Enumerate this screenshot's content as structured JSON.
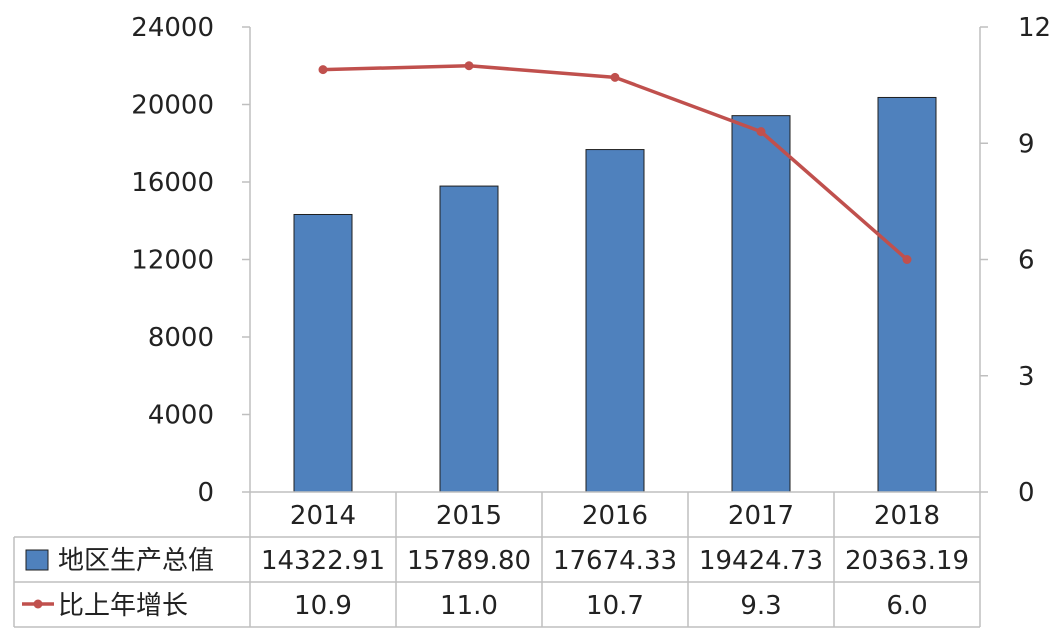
{
  "chart_data": {
    "type": "bar+line",
    "categories": [
      "2014",
      "2015",
      "2016",
      "2017",
      "2018"
    ],
    "series": [
      {
        "name": "地区生产总值",
        "type": "bar",
        "axis": "left",
        "color": "#4F81BD",
        "values": [
          14322.91,
          15789.8,
          17674.33,
          19424.73,
          20363.19
        ],
        "labels": [
          "14322.91",
          "15789.80",
          "17674.33",
          "19424.73",
          "20363.19"
        ]
      },
      {
        "name": "比上年增长",
        "type": "line",
        "axis": "right",
        "color": "#C0504D",
        "values": [
          10.9,
          11.0,
          10.7,
          9.3,
          6.0
        ],
        "labels": [
          "10.9",
          "11.0",
          "10.7",
          "9.3",
          "6.0"
        ]
      }
    ],
    "y_left": {
      "ylim": [
        0,
        24000
      ],
      "ticks": [
        "0",
        "4000",
        "8000",
        "12000",
        "16000",
        "20000",
        "24000"
      ]
    },
    "y_right": {
      "ylim": [
        0,
        12
      ],
      "ticks": [
        "0",
        "3",
        "6",
        "9",
        "12"
      ]
    },
    "grid": false,
    "legend": "data-table"
  }
}
